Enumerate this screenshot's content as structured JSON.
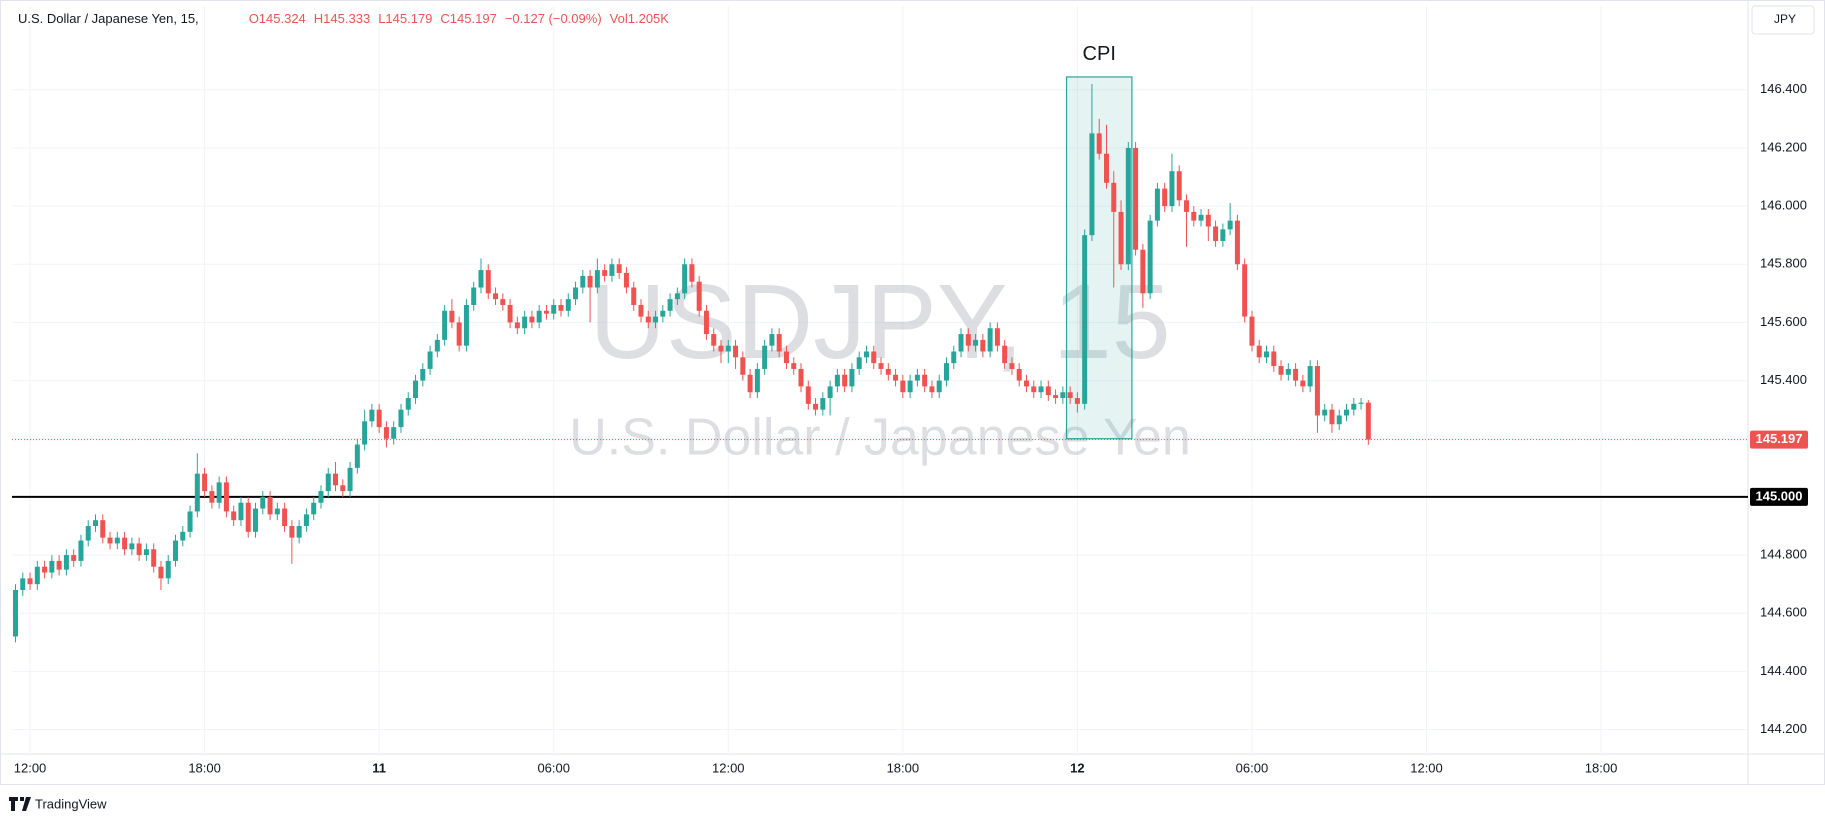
{
  "chart_data": {
    "type": "candlestick",
    "header": {
      "name": "U.S. Dollar / Japanese Yen, 15,",
      "open": "O145.324",
      "high": "H145.333",
      "low": "L145.179",
      "close": "C145.197",
      "change": "−0.127 (−0.09%)",
      "volume": "Vol1.205K"
    },
    "watermark": {
      "symbol": "USDJPY, 15",
      "description": "U.S. Dollar / Japanese Yen"
    },
    "currency": "JPY",
    "brand": "TradingView",
    "up_color": "#26a69a",
    "down_color": "#ef5350",
    "grid": true,
    "xlim": [
      -0.48,
      238.2
    ],
    "xticks": [
      {
        "value": 2,
        "label": "12:00"
      },
      {
        "value": 26,
        "label": "18:00"
      },
      {
        "value": 50,
        "label": "11"
      },
      {
        "value": 74,
        "label": "06:00"
      },
      {
        "value": 98,
        "label": "12:00"
      },
      {
        "value": 122,
        "label": "18:00"
      },
      {
        "value": 146,
        "label": "12"
      },
      {
        "value": 170,
        "label": "06:00"
      },
      {
        "value": 194,
        "label": "12:00"
      },
      {
        "value": 218,
        "label": "18:00"
      }
    ],
    "ylim": [
      144.116,
      146.688
    ],
    "yticks": [
      {
        "value": 144.2,
        "label": "144.200"
      },
      {
        "value": 144.4,
        "label": "144.400"
      },
      {
        "value": 144.6,
        "label": "144.600"
      },
      {
        "value": 144.8,
        "label": "144.800"
      },
      {
        "value": 145.0,
        "label": "145.000"
      },
      {
        "value": 145.2,
        "label": "145.200"
      },
      {
        "value": 145.4,
        "label": "145.400"
      },
      {
        "value": 145.6,
        "label": "145.600"
      },
      {
        "value": 145.8,
        "label": "145.800"
      },
      {
        "value": 146.0,
        "label": "146.000"
      },
      {
        "value": 146.2,
        "label": "146.200"
      },
      {
        "value": 146.4,
        "label": "146.400"
      }
    ],
    "hline": {
      "value": 145.0,
      "label": "145.000"
    },
    "price_line": {
      "value": 145.197,
      "label": "145.197"
    },
    "annotation": {
      "text": "CPI",
      "candles": [
        145,
        153
      ],
      "price_range": [
        145.2,
        146.444
      ]
    },
    "candles": [
      [
        144.52,
        144.7,
        144.5,
        144.68
      ],
      [
        144.68,
        144.74,
        144.66,
        144.72
      ],
      [
        144.72,
        144.74,
        144.68,
        144.7
      ],
      [
        144.7,
        144.78,
        144.68,
        144.76
      ],
      [
        144.76,
        144.78,
        144.72,
        144.74
      ],
      [
        144.74,
        144.8,
        144.72,
        144.78
      ],
      [
        144.78,
        144.8,
        144.73,
        144.75
      ],
      [
        144.75,
        144.82,
        144.73,
        144.8
      ],
      [
        144.8,
        144.82,
        144.76,
        144.78
      ],
      [
        144.78,
        144.87,
        144.76,
        144.85
      ],
      [
        144.85,
        144.92,
        144.83,
        144.9
      ],
      [
        144.9,
        144.94,
        144.88,
        144.92
      ],
      [
        144.92,
        144.94,
        144.84,
        144.86
      ],
      [
        144.86,
        144.88,
        144.82,
        144.84
      ],
      [
        144.84,
        144.88,
        144.82,
        144.86
      ],
      [
        144.86,
        144.88,
        144.8,
        144.82
      ],
      [
        144.82,
        144.86,
        144.8,
        144.84
      ],
      [
        144.84,
        144.86,
        144.78,
        144.8
      ],
      [
        144.8,
        144.84,
        144.78,
        144.82
      ],
      [
        144.82,
        144.84,
        144.74,
        144.76
      ],
      [
        144.76,
        144.78,
        144.68,
        144.72
      ],
      [
        144.72,
        144.8,
        144.7,
        144.78
      ],
      [
        144.78,
        144.87,
        144.76,
        144.85
      ],
      [
        144.85,
        144.9,
        144.83,
        144.88
      ],
      [
        144.88,
        144.97,
        144.86,
        144.95
      ],
      [
        144.95,
        145.15,
        144.93,
        145.08
      ],
      [
        145.08,
        145.1,
        145.0,
        145.02
      ],
      [
        145.02,
        145.04,
        144.96,
        144.98
      ],
      [
        144.98,
        145.07,
        144.96,
        145.05
      ],
      [
        145.05,
        145.07,
        144.93,
        144.95
      ],
      [
        144.95,
        144.97,
        144.9,
        144.92
      ],
      [
        144.92,
        145.0,
        144.9,
        144.98
      ],
      [
        144.98,
        145.0,
        144.86,
        144.88
      ],
      [
        144.88,
        144.98,
        144.86,
        144.96
      ],
      [
        144.96,
        145.02,
        144.94,
        145.0
      ],
      [
        145.0,
        145.02,
        144.92,
        144.94
      ],
      [
        144.94,
        144.98,
        144.92,
        144.96
      ],
      [
        144.96,
        144.98,
        144.88,
        144.9
      ],
      [
        144.9,
        144.92,
        144.77,
        144.86
      ],
      [
        144.86,
        144.92,
        144.84,
        144.9
      ],
      [
        144.9,
        144.96,
        144.88,
        144.94
      ],
      [
        144.94,
        145.0,
        144.92,
        144.98
      ],
      [
        144.98,
        145.04,
        144.96,
        145.02
      ],
      [
        145.02,
        145.1,
        145.0,
        145.08
      ],
      [
        145.08,
        145.12,
        145.02,
        145.04
      ],
      [
        145.04,
        145.06,
        145.0,
        145.02
      ],
      [
        145.02,
        145.12,
        145.0,
        145.1
      ],
      [
        145.1,
        145.2,
        145.08,
        145.18
      ],
      [
        145.18,
        145.3,
        145.16,
        145.26
      ],
      [
        145.26,
        145.32,
        145.24,
        145.3
      ],
      [
        145.3,
        145.32,
        145.22,
        145.24
      ],
      [
        145.24,
        145.26,
        145.17,
        145.2
      ],
      [
        145.2,
        145.26,
        145.18,
        145.24
      ],
      [
        145.24,
        145.32,
        145.22,
        145.3
      ],
      [
        145.3,
        145.36,
        145.28,
        145.34
      ],
      [
        145.34,
        145.42,
        145.32,
        145.4
      ],
      [
        145.4,
        145.46,
        145.38,
        145.44
      ],
      [
        145.44,
        145.52,
        145.42,
        145.5
      ],
      [
        145.5,
        145.56,
        145.48,
        145.54
      ],
      [
        145.54,
        145.66,
        145.52,
        145.64
      ],
      [
        145.64,
        145.68,
        145.58,
        145.6
      ],
      [
        145.6,
        145.62,
        145.5,
        145.52
      ],
      [
        145.52,
        145.68,
        145.5,
        145.66
      ],
      [
        145.66,
        145.74,
        145.64,
        145.72
      ],
      [
        145.72,
        145.82,
        145.7,
        145.78
      ],
      [
        145.78,
        145.8,
        145.68,
        145.7
      ],
      [
        145.7,
        145.72,
        145.66,
        145.68
      ],
      [
        145.68,
        145.7,
        145.64,
        145.66
      ],
      [
        145.66,
        145.68,
        145.58,
        145.6
      ],
      [
        145.6,
        145.62,
        145.56,
        145.58
      ],
      [
        145.58,
        145.64,
        145.56,
        145.62
      ],
      [
        145.62,
        145.64,
        145.58,
        145.6
      ],
      [
        145.6,
        145.66,
        145.58,
        145.64
      ],
      [
        145.64,
        145.66,
        145.61,
        145.63
      ],
      [
        145.63,
        145.68,
        145.61,
        145.66
      ],
      [
        145.66,
        145.68,
        145.62,
        145.64
      ],
      [
        145.64,
        145.7,
        145.62,
        145.68
      ],
      [
        145.68,
        145.74,
        145.66,
        145.72
      ],
      [
        145.72,
        145.78,
        145.7,
        145.76
      ],
      [
        145.76,
        145.78,
        145.6,
        145.72
      ],
      [
        145.72,
        145.82,
        145.7,
        145.78
      ],
      [
        145.78,
        145.8,
        145.74,
        145.76
      ],
      [
        145.76,
        145.82,
        145.74,
        145.8
      ],
      [
        145.8,
        145.82,
        145.75,
        145.77
      ],
      [
        145.77,
        145.79,
        145.7,
        145.72
      ],
      [
        145.72,
        145.74,
        145.64,
        145.66
      ],
      [
        145.66,
        145.68,
        145.6,
        145.62
      ],
      [
        145.62,
        145.64,
        145.58,
        145.6
      ],
      [
        145.6,
        145.64,
        145.58,
        145.62
      ],
      [
        145.62,
        145.66,
        145.6,
        145.64
      ],
      [
        145.64,
        145.7,
        145.62,
        145.68
      ],
      [
        145.68,
        145.72,
        145.66,
        145.7
      ],
      [
        145.7,
        145.82,
        145.68,
        145.8
      ],
      [
        145.8,
        145.82,
        145.72,
        145.74
      ],
      [
        145.74,
        145.76,
        145.62,
        145.64
      ],
      [
        145.64,
        145.66,
        145.54,
        145.56
      ],
      [
        145.56,
        145.58,
        145.5,
        145.52
      ],
      [
        145.52,
        145.54,
        145.46,
        145.5
      ],
      [
        145.5,
        145.54,
        145.46,
        145.52
      ],
      [
        145.52,
        145.54,
        145.44,
        145.48
      ],
      [
        145.48,
        145.5,
        145.4,
        145.42
      ],
      [
        145.42,
        145.44,
        145.34,
        145.36
      ],
      [
        145.36,
        145.46,
        145.34,
        145.44
      ],
      [
        145.44,
        145.54,
        145.42,
        145.52
      ],
      [
        145.52,
        145.58,
        145.5,
        145.56
      ],
      [
        145.56,
        145.58,
        145.48,
        145.5
      ],
      [
        145.5,
        145.52,
        145.44,
        145.46
      ],
      [
        145.46,
        145.48,
        145.42,
        145.44
      ],
      [
        145.44,
        145.46,
        145.36,
        145.38
      ],
      [
        145.38,
        145.4,
        145.3,
        145.32
      ],
      [
        145.32,
        145.34,
        145.28,
        145.3
      ],
      [
        145.3,
        145.36,
        145.28,
        145.34
      ],
      [
        145.34,
        145.4,
        145.28,
        145.38
      ],
      [
        145.38,
        145.44,
        145.36,
        145.42
      ],
      [
        145.42,
        145.44,
        145.36,
        145.38
      ],
      [
        145.38,
        145.46,
        145.36,
        145.44
      ],
      [
        145.44,
        145.5,
        145.42,
        145.48
      ],
      [
        145.48,
        145.52,
        145.46,
        145.5
      ],
      [
        145.5,
        145.52,
        145.44,
        145.46
      ],
      [
        145.46,
        145.48,
        145.42,
        145.44
      ],
      [
        145.44,
        145.46,
        145.4,
        145.42
      ],
      [
        145.42,
        145.44,
        145.38,
        145.4
      ],
      [
        145.4,
        145.42,
        145.34,
        145.36
      ],
      [
        145.36,
        145.42,
        145.34,
        145.4
      ],
      [
        145.4,
        145.44,
        145.38,
        145.42
      ],
      [
        145.42,
        145.44,
        145.36,
        145.38
      ],
      [
        145.38,
        145.4,
        145.34,
        145.36
      ],
      [
        145.36,
        145.42,
        145.34,
        145.4
      ],
      [
        145.4,
        145.48,
        145.38,
        145.46
      ],
      [
        145.46,
        145.52,
        145.44,
        145.5
      ],
      [
        145.5,
        145.58,
        145.48,
        145.56
      ],
      [
        145.56,
        145.58,
        145.5,
        145.52
      ],
      [
        145.52,
        145.56,
        145.5,
        145.54
      ],
      [
        145.54,
        145.56,
        145.48,
        145.5
      ],
      [
        145.5,
        145.6,
        145.48,
        145.58
      ],
      [
        145.58,
        145.6,
        145.5,
        145.52
      ],
      [
        145.52,
        145.54,
        145.44,
        145.46
      ],
      [
        145.46,
        145.48,
        145.42,
        145.44
      ],
      [
        145.44,
        145.46,
        145.38,
        145.4
      ],
      [
        145.4,
        145.42,
        145.36,
        145.38
      ],
      [
        145.38,
        145.4,
        145.34,
        145.36
      ],
      [
        145.36,
        145.4,
        145.34,
        145.38
      ],
      [
        145.38,
        145.4,
        145.33,
        145.35
      ],
      [
        145.35,
        145.37,
        145.32,
        145.34
      ],
      [
        145.34,
        145.38,
        145.32,
        145.36
      ],
      [
        145.36,
        145.38,
        145.32,
        145.34
      ],
      [
        145.34,
        145.36,
        145.29,
        145.32
      ],
      [
        145.32,
        145.92,
        145.3,
        145.9
      ],
      [
        145.9,
        146.42,
        145.88,
        146.25
      ],
      [
        146.25,
        146.3,
        146.16,
        146.18
      ],
      [
        146.18,
        146.28,
        146.06,
        146.08
      ],
      [
        146.08,
        146.12,
        145.72,
        145.98
      ],
      [
        145.98,
        146.02,
        145.78,
        145.8
      ],
      [
        145.8,
        146.22,
        145.78,
        146.2
      ],
      [
        146.2,
        146.22,
        145.83,
        145.85
      ],
      [
        145.85,
        145.87,
        145.65,
        145.7
      ],
      [
        145.7,
        145.97,
        145.68,
        145.95
      ],
      [
        145.95,
        146.08,
        145.93,
        146.06
      ],
      [
        146.06,
        146.08,
        145.98,
        146.0
      ],
      [
        146.0,
        146.18,
        145.98,
        146.12
      ],
      [
        146.12,
        146.14,
        146.0,
        146.02
      ],
      [
        146.02,
        146.04,
        145.86,
        145.98
      ],
      [
        145.98,
        146.0,
        145.93,
        145.95
      ],
      [
        145.95,
        145.99,
        145.93,
        145.97
      ],
      [
        145.97,
        145.99,
        145.88,
        145.93
      ],
      [
        145.93,
        145.95,
        145.86,
        145.88
      ],
      [
        145.88,
        145.94,
        145.86,
        145.92
      ],
      [
        145.92,
        146.01,
        145.9,
        145.95
      ],
      [
        145.95,
        145.97,
        145.78,
        145.8
      ],
      [
        145.8,
        145.82,
        145.6,
        145.62
      ],
      [
        145.62,
        145.64,
        145.5,
        145.52
      ],
      [
        145.52,
        145.54,
        145.46,
        145.48
      ],
      [
        145.48,
        145.52,
        145.46,
        145.5
      ],
      [
        145.5,
        145.52,
        145.43,
        145.45
      ],
      [
        145.45,
        145.47,
        145.4,
        145.42
      ],
      [
        145.42,
        145.46,
        145.4,
        145.44
      ],
      [
        145.44,
        145.46,
        145.38,
        145.4
      ],
      [
        145.4,
        145.42,
        145.36,
        145.38
      ],
      [
        145.38,
        145.47,
        145.36,
        145.45
      ],
      [
        145.45,
        145.47,
        145.22,
        145.28
      ],
      [
        145.28,
        145.32,
        145.26,
        145.3
      ],
      [
        145.3,
        145.32,
        145.22,
        145.25
      ],
      [
        145.25,
        145.3,
        145.23,
        145.28
      ],
      [
        145.28,
        145.32,
        145.26,
        145.3
      ],
      [
        145.3,
        145.34,
        145.28,
        145.32
      ],
      [
        145.32,
        145.34,
        145.3,
        145.324
      ],
      [
        145.324,
        145.333,
        145.179,
        145.197
      ]
    ]
  }
}
